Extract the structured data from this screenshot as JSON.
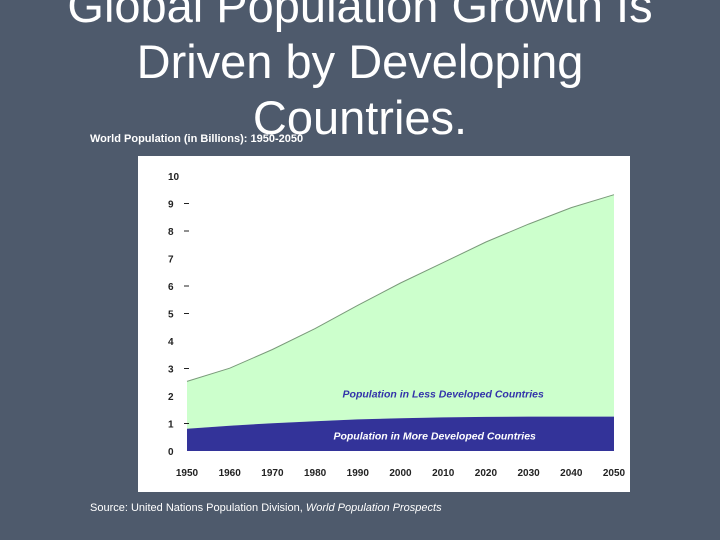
{
  "title_lines": [
    "Global Population Growth Is",
    "Driven by Developing",
    "Countries."
  ],
  "chart_label": "World Population (in Billions): 1950-2050",
  "source": {
    "prefix": "Source: United Nations Population Division, ",
    "publication": "World Population Prospects"
  },
  "colors": {
    "background": "#4e5a6c",
    "less_developed": "#ccffcc",
    "more_developed": "#333399",
    "series_label": "#3333aa"
  },
  "chart_data": {
    "type": "area",
    "stacked": true,
    "x": [
      1950,
      1960,
      1970,
      1980,
      1990,
      2000,
      2010,
      2020,
      2030,
      2040,
      2050
    ],
    "series": [
      {
        "name": "Population in More Developed Countries",
        "values": [
          0.81,
          0.92,
          1.01,
          1.08,
          1.15,
          1.19,
          1.22,
          1.24,
          1.25,
          1.25,
          1.25
        ]
      },
      {
        "name": "Population in Less Developed Countries",
        "values": [
          1.72,
          2.09,
          2.68,
          3.37,
          4.15,
          4.92,
          5.63,
          6.36,
          7.0,
          7.6,
          8.07
        ]
      }
    ],
    "xticks": [
      "1950",
      "1960",
      "1970",
      "1980",
      "1990",
      "2000",
      "2010",
      "2020",
      "2030",
      "2040",
      "2050"
    ],
    "yticks": [
      "0",
      "1",
      "2",
      "3",
      "4",
      "5",
      "6",
      "7",
      "8",
      "9",
      "10"
    ],
    "ylim": [
      0,
      10
    ],
    "xlim": [
      1950,
      2050
    ],
    "grid": false
  }
}
